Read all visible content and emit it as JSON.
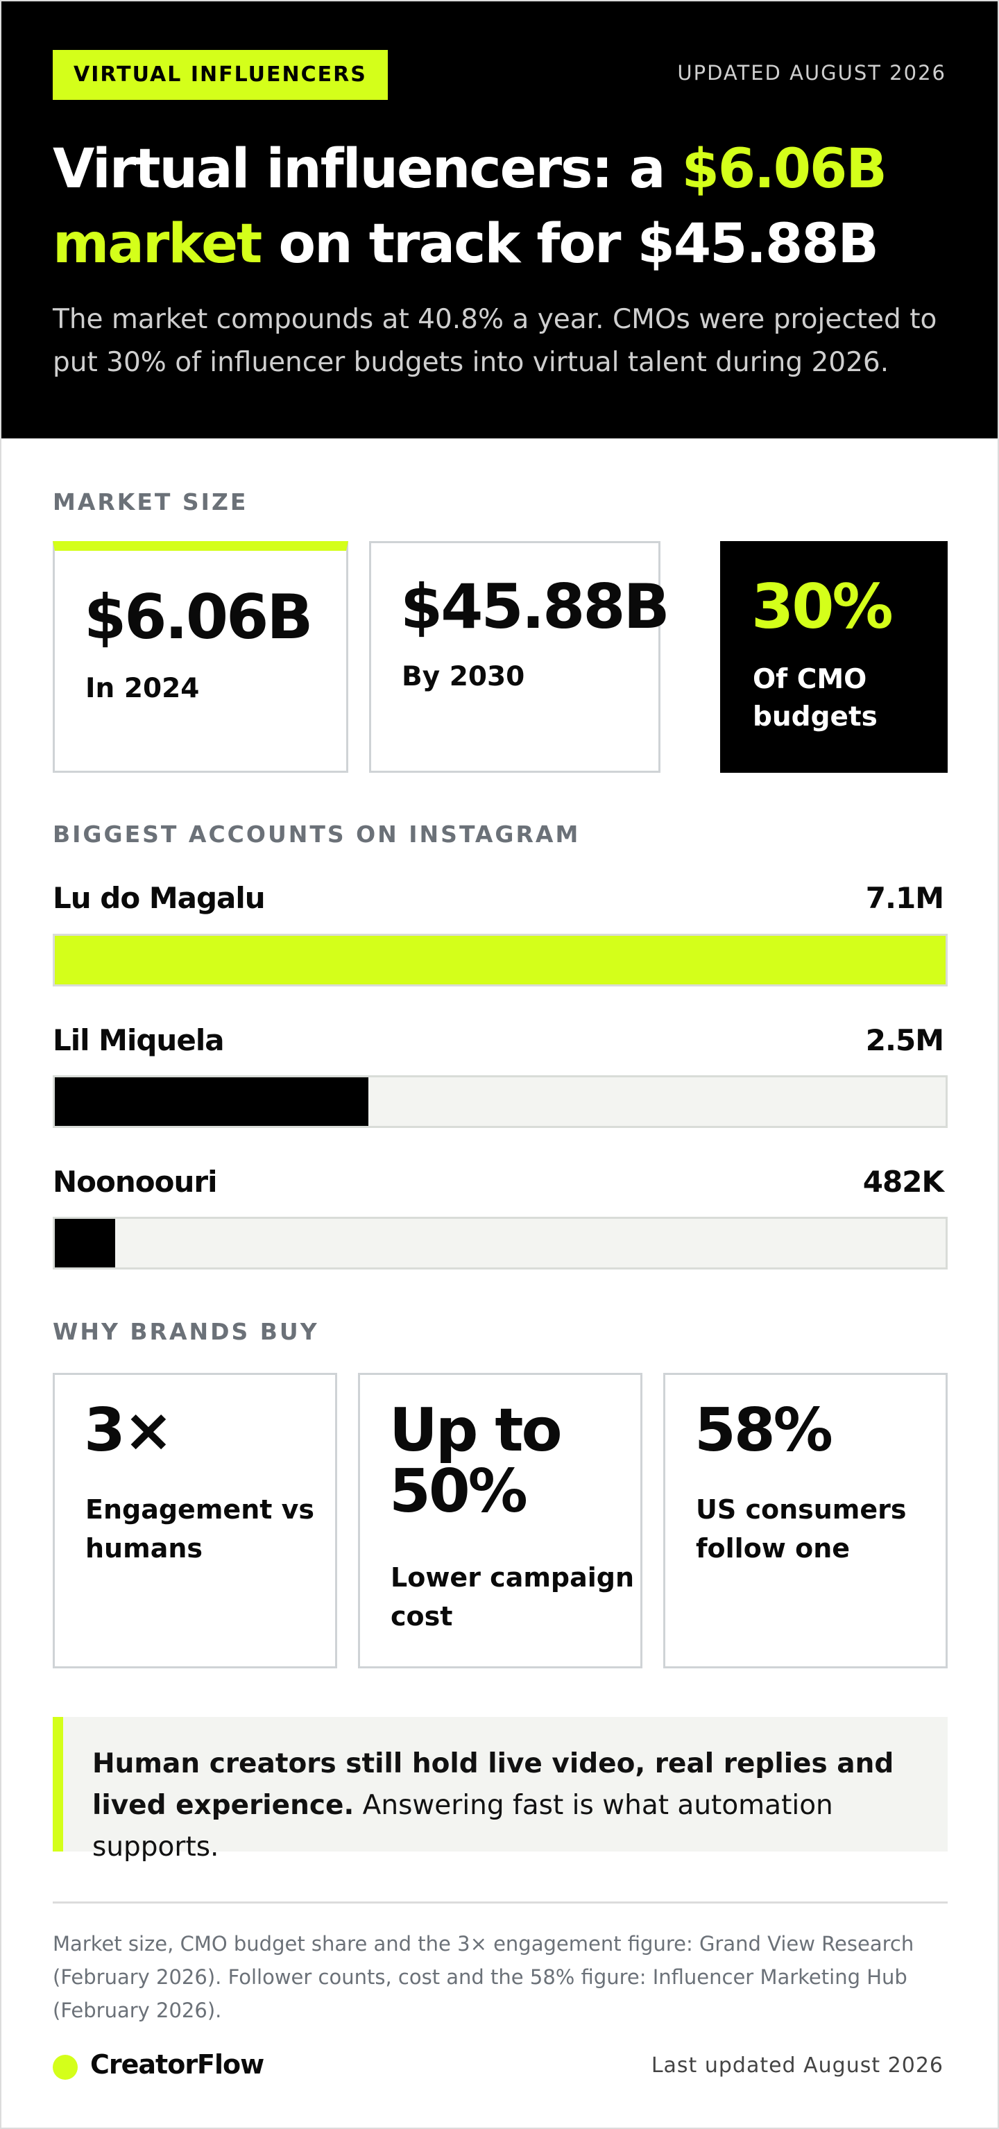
{
  "header": {
    "kicker": "VIRTUAL INFLUENCERS",
    "updated": "UPDATED AUGUST 2026",
    "headline": {
      "part1": "Virtual influencers: a ",
      "accent1": "$6.06B",
      "accent2": "market",
      "part2": " on track for $45.88B"
    },
    "subhead": "The market compounds at 40.8% a year. CMOs were projected to put 30% of influencer budgets into virtual talent during 2026."
  },
  "market_size": {
    "label": "MARKET SIZE",
    "cards": [
      {
        "value": "$6.06B",
        "label": "In 2024"
      },
      {
        "value": "$45.88B",
        "label": "By 2030"
      },
      {
        "value": "30%",
        "label": "Of CMO budgets"
      }
    ]
  },
  "accounts": {
    "label": "BIGGEST ACCOUNTS ON INSTAGRAM",
    "items": [
      {
        "name": "Lu do Magalu",
        "value": "7.1M",
        "followers": 7100000
      },
      {
        "name": "Lil Miquela",
        "value": "2.5M",
        "followers": 2500000
      },
      {
        "name": "Noonoouri",
        "value": "482K",
        "followers": 482000
      }
    ]
  },
  "why": {
    "label": "WHY BRANDS BUY",
    "cards": [
      {
        "value": "3×",
        "label": "Engagement vs humans"
      },
      {
        "value": "Up to 50%",
        "label": "Lower campaign cost"
      },
      {
        "value": "58%",
        "label": "US consumers follow one"
      }
    ]
  },
  "callout": {
    "bold": "Human creators still hold live video, real replies and lived experience.",
    "rest": " Answering fast is what automation supports."
  },
  "sources": "Market size, CMO budget share and the 3× engagement figure: Grand View Research (February 2026). Follower counts, cost and the 58% figure: Influencer Marketing Hub (February 2026).",
  "footer": {
    "brand": "CreatorFlow",
    "last_updated": "Last updated August 2026"
  },
  "colors": {
    "accent": "#d4ff1a",
    "dark": "#000000",
    "muted": "#6b7178",
    "panel": "#f3f4f1"
  }
}
